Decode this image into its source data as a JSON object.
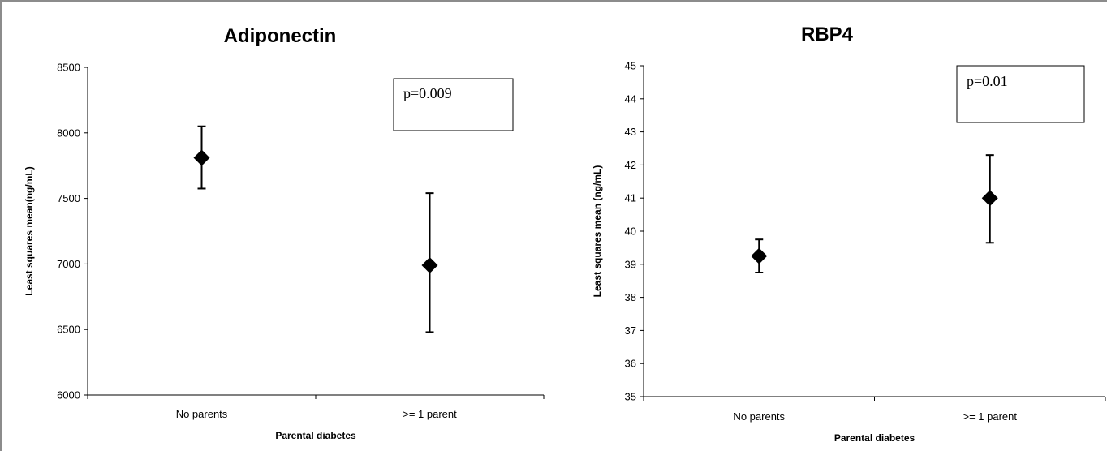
{
  "chart_data": [
    {
      "type": "scatter",
      "title": "Adiponectin",
      "xlabel": "Parental diabetes",
      "ylabel": "Least squares mean(ng/mL)",
      "categories": [
        "No parents",
        ">= 1 parent"
      ],
      "values": [
        7810,
        6990
      ],
      "error_low": [
        7575,
        6480
      ],
      "error_high": [
        8050,
        7540
      ],
      "ylim": [
        6000,
        8500
      ],
      "yticks": [
        6000,
        6500,
        7000,
        7500,
        8000,
        8500
      ],
      "annotation": "p=0.009",
      "marker": "diamond",
      "grid": false
    },
    {
      "type": "scatter",
      "title": "RBP4",
      "xlabel": "Parental diabetes",
      "ylabel": "Least squares mean (ng/mL)",
      "categories": [
        "No parents",
        ">= 1 parent"
      ],
      "values": [
        39.25,
        41.0
      ],
      "error_low": [
        38.75,
        39.65
      ],
      "error_high": [
        39.75,
        42.3
      ],
      "ylim": [
        35,
        45
      ],
      "yticks": [
        35,
        36,
        37,
        38,
        39,
        40,
        41,
        42,
        43,
        44,
        45
      ],
      "annotation": "p=0.01",
      "marker": "diamond",
      "grid": false
    }
  ]
}
